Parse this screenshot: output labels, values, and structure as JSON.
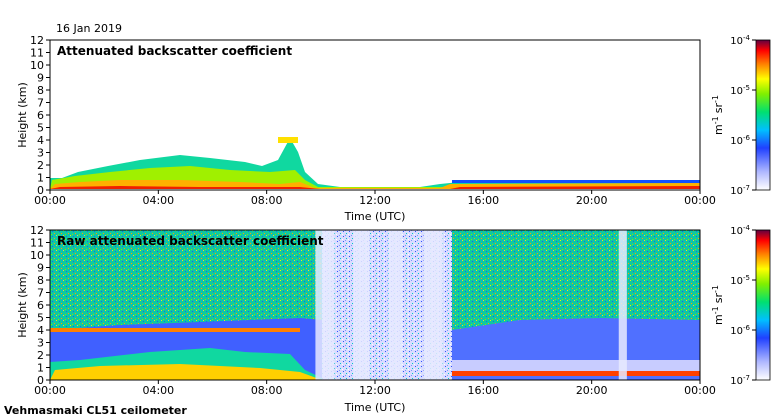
{
  "date": "16 Jan 2019",
  "footer": "Vehmasmaki CL51 ceilometer",
  "chart_data": [
    {
      "type": "heatmap",
      "title": "Attenuated backscatter coefficient",
      "xlabel": "Time (UTC)",
      "ylabel": "Height (km)",
      "x_ticks": [
        "00:00",
        "04:00",
        "08:00",
        "12:00",
        "16:00",
        "20:00",
        "00:00"
      ],
      "xlim_hours": [
        0,
        24
      ],
      "y_ticks": [
        0,
        1,
        2,
        3,
        4,
        5,
        6,
        7,
        8,
        9,
        10,
        11,
        12
      ],
      "ylim": [
        0,
        12
      ],
      "colorbar": {
        "ticks": [
          "10",
          "10",
          "10",
          "10"
        ],
        "exponents": [
          "-4",
          "-5",
          "-6",
          "-7"
        ],
        "values": [
          0.0001,
          1e-05,
          1e-06,
          1e-07
        ],
        "scale": "log",
        "label_base": [
          "m",
          "sr"
        ],
        "label_exponents": [
          "-1",
          "-1"
        ]
      },
      "boundary_layer_top_km": [
        [
          0,
          0.9
        ],
        [
          0.5,
          0.9
        ],
        [
          1.0,
          1.3
        ],
        [
          1.5,
          1.5
        ],
        [
          2.0,
          1.8
        ],
        [
          3.0,
          2.0
        ],
        [
          4.0,
          2.4
        ],
        [
          5.0,
          2.6
        ],
        [
          6.0,
          2.4
        ],
        [
          7.0,
          2.2
        ],
        [
          8.0,
          1.5
        ],
        [
          8.7,
          2.0
        ],
        [
          9.2,
          3.4
        ],
        [
          9.6,
          0.8
        ],
        [
          10.0,
          0.2
        ],
        [
          14.0,
          0.1
        ],
        [
          14.5,
          0.5
        ],
        [
          16.0,
          0.6
        ],
        [
          20.0,
          0.7
        ],
        [
          24.0,
          0.7
        ]
      ]
    },
    {
      "type": "heatmap",
      "title": "Raw attenuated backscatter coefficient",
      "xlabel": "Time (UTC)",
      "ylabel": "Height (km)",
      "x_ticks": [
        "00:00",
        "04:00",
        "08:00",
        "12:00",
        "16:00",
        "20:00",
        "00:00"
      ],
      "xlim_hours": [
        0,
        24
      ],
      "y_ticks": [
        0,
        1,
        2,
        3,
        4,
        5,
        6,
        7,
        8,
        9,
        10,
        11,
        12
      ],
      "ylim": [
        0,
        12
      ],
      "colorbar": {
        "ticks": [
          "10",
          "10",
          "10",
          "10"
        ],
        "exponents": [
          "-4",
          "-5",
          "-6",
          "-7"
        ],
        "values": [
          0.0001,
          1e-05,
          1e-06,
          1e-07
        ],
        "scale": "log",
        "label_base": [
          "m",
          "sr"
        ],
        "label_exponents": [
          "-1",
          "-1"
        ]
      },
      "cloud_layer_km": [
        [
          4.0,
          8.5,
          3.8
        ],
        [
          1.2,
          8.8,
          1.4
        ]
      ],
      "clear_columns_hours": [
        [
          9.8,
          10.5
        ],
        [
          11.2,
          11.8
        ],
        [
          12.5,
          13.0
        ],
        [
          13.8,
          14.5
        ],
        [
          21.0,
          21.3
        ]
      ]
    }
  ]
}
